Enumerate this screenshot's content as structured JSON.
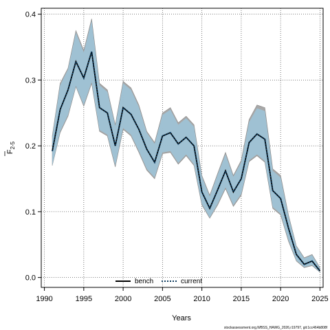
{
  "chart_data": {
    "type": "line",
    "title": "",
    "xlabel": "Years",
    "ylabel": "F",
    "ylabel_subscript": "2-5",
    "xlim": [
      1990,
      2025
    ],
    "ylim": [
      0.0,
      0.4
    ],
    "xticks": [
      1990,
      1995,
      2000,
      2005,
      2010,
      2015,
      2020,
      2025
    ],
    "xtick_labels": [
      "1990",
      "1995",
      "2000",
      "2005",
      "2010",
      "2015",
      "2020",
      "2025"
    ],
    "yticks": [
      0.0,
      0.1,
      0.2,
      0.3,
      0.4
    ],
    "ytick_labels": [
      "0.0",
      "0.1",
      "0.2",
      "0.3",
      "0.4"
    ],
    "grid": true,
    "legend_position": "bottom-center",
    "x": [
      1991,
      1992,
      1993,
      1994,
      1995,
      1996,
      1997,
      1998,
      1999,
      2000,
      2001,
      2002,
      2003,
      2004,
      2005,
      2006,
      2007,
      2008,
      2009,
      2010,
      2011,
      2012,
      2013,
      2014,
      2015,
      2016,
      2017,
      2018,
      2019,
      2020,
      2021,
      2022,
      2023,
      2024,
      2025
    ],
    "series": [
      {
        "name": "bench",
        "style": "solid",
        "color": "#000000",
        "values": [
          0.192,
          0.255,
          0.285,
          0.328,
          0.303,
          0.343,
          0.258,
          0.25,
          0.2,
          0.258,
          0.248,
          0.225,
          0.195,
          0.175,
          0.215,
          0.22,
          0.203,
          0.213,
          0.2,
          0.13,
          0.105,
          0.133,
          0.162,
          0.13,
          0.15,
          0.205,
          0.218,
          0.21,
          0.132,
          0.12,
          0.075,
          0.035,
          0.02,
          0.025,
          0.01
        ],
        "lower": [
          0.17,
          0.22,
          0.245,
          0.29,
          0.26,
          0.295,
          0.222,
          0.215,
          0.168,
          0.225,
          0.215,
          0.19,
          0.163,
          0.15,
          0.188,
          0.19,
          0.172,
          0.185,
          0.17,
          0.11,
          0.09,
          0.11,
          0.135,
          0.108,
          0.125,
          0.176,
          0.185,
          0.175,
          0.105,
          0.095,
          0.055,
          0.025,
          0.015,
          0.018,
          0.008
        ],
        "upper": [
          0.215,
          0.295,
          0.318,
          0.375,
          0.345,
          0.393,
          0.295,
          0.285,
          0.232,
          0.298,
          0.288,
          0.262,
          0.222,
          0.205,
          0.25,
          0.258,
          0.235,
          0.245,
          0.232,
          0.155,
          0.125,
          0.158,
          0.19,
          0.155,
          0.178,
          0.24,
          0.262,
          0.258,
          0.165,
          0.155,
          0.095,
          0.048,
          0.03,
          0.035,
          0.015
        ],
        "band_color": "#9e9e9e"
      },
      {
        "name": "current",
        "style": "dotted",
        "color": "#0d3a5c",
        "values": [
          0.192,
          0.255,
          0.285,
          0.328,
          0.303,
          0.343,
          0.258,
          0.25,
          0.2,
          0.258,
          0.248,
          0.225,
          0.195,
          0.175,
          0.215,
          0.22,
          0.203,
          0.213,
          0.2,
          0.13,
          0.105,
          0.133,
          0.162,
          0.13,
          0.15,
          0.205,
          0.218,
          0.21,
          0.132,
          0.12,
          0.075,
          0.035,
          0.02,
          0.025,
          0.01
        ],
        "lower": [
          0.17,
          0.222,
          0.247,
          0.291,
          0.262,
          0.297,
          0.224,
          0.217,
          0.17,
          0.227,
          0.217,
          0.192,
          0.165,
          0.152,
          0.19,
          0.192,
          0.174,
          0.187,
          0.172,
          0.112,
          0.091,
          0.112,
          0.137,
          0.11,
          0.127,
          0.178,
          0.187,
          0.177,
          0.107,
          0.097,
          0.057,
          0.026,
          0.016,
          0.019,
          0.008
        ],
        "upper": [
          0.213,
          0.292,
          0.316,
          0.372,
          0.342,
          0.39,
          0.292,
          0.282,
          0.23,
          0.295,
          0.285,
          0.259,
          0.22,
          0.203,
          0.247,
          0.255,
          0.232,
          0.242,
          0.229,
          0.153,
          0.123,
          0.156,
          0.187,
          0.153,
          0.175,
          0.236,
          0.257,
          0.253,
          0.162,
          0.152,
          0.093,
          0.047,
          0.029,
          0.034,
          0.014
        ],
        "band_color": "#9ec6db"
      }
    ],
    "footnote": "stockassessment.org,WBSS_HAWG_2026,r19797, git:1cc464b808f"
  }
}
